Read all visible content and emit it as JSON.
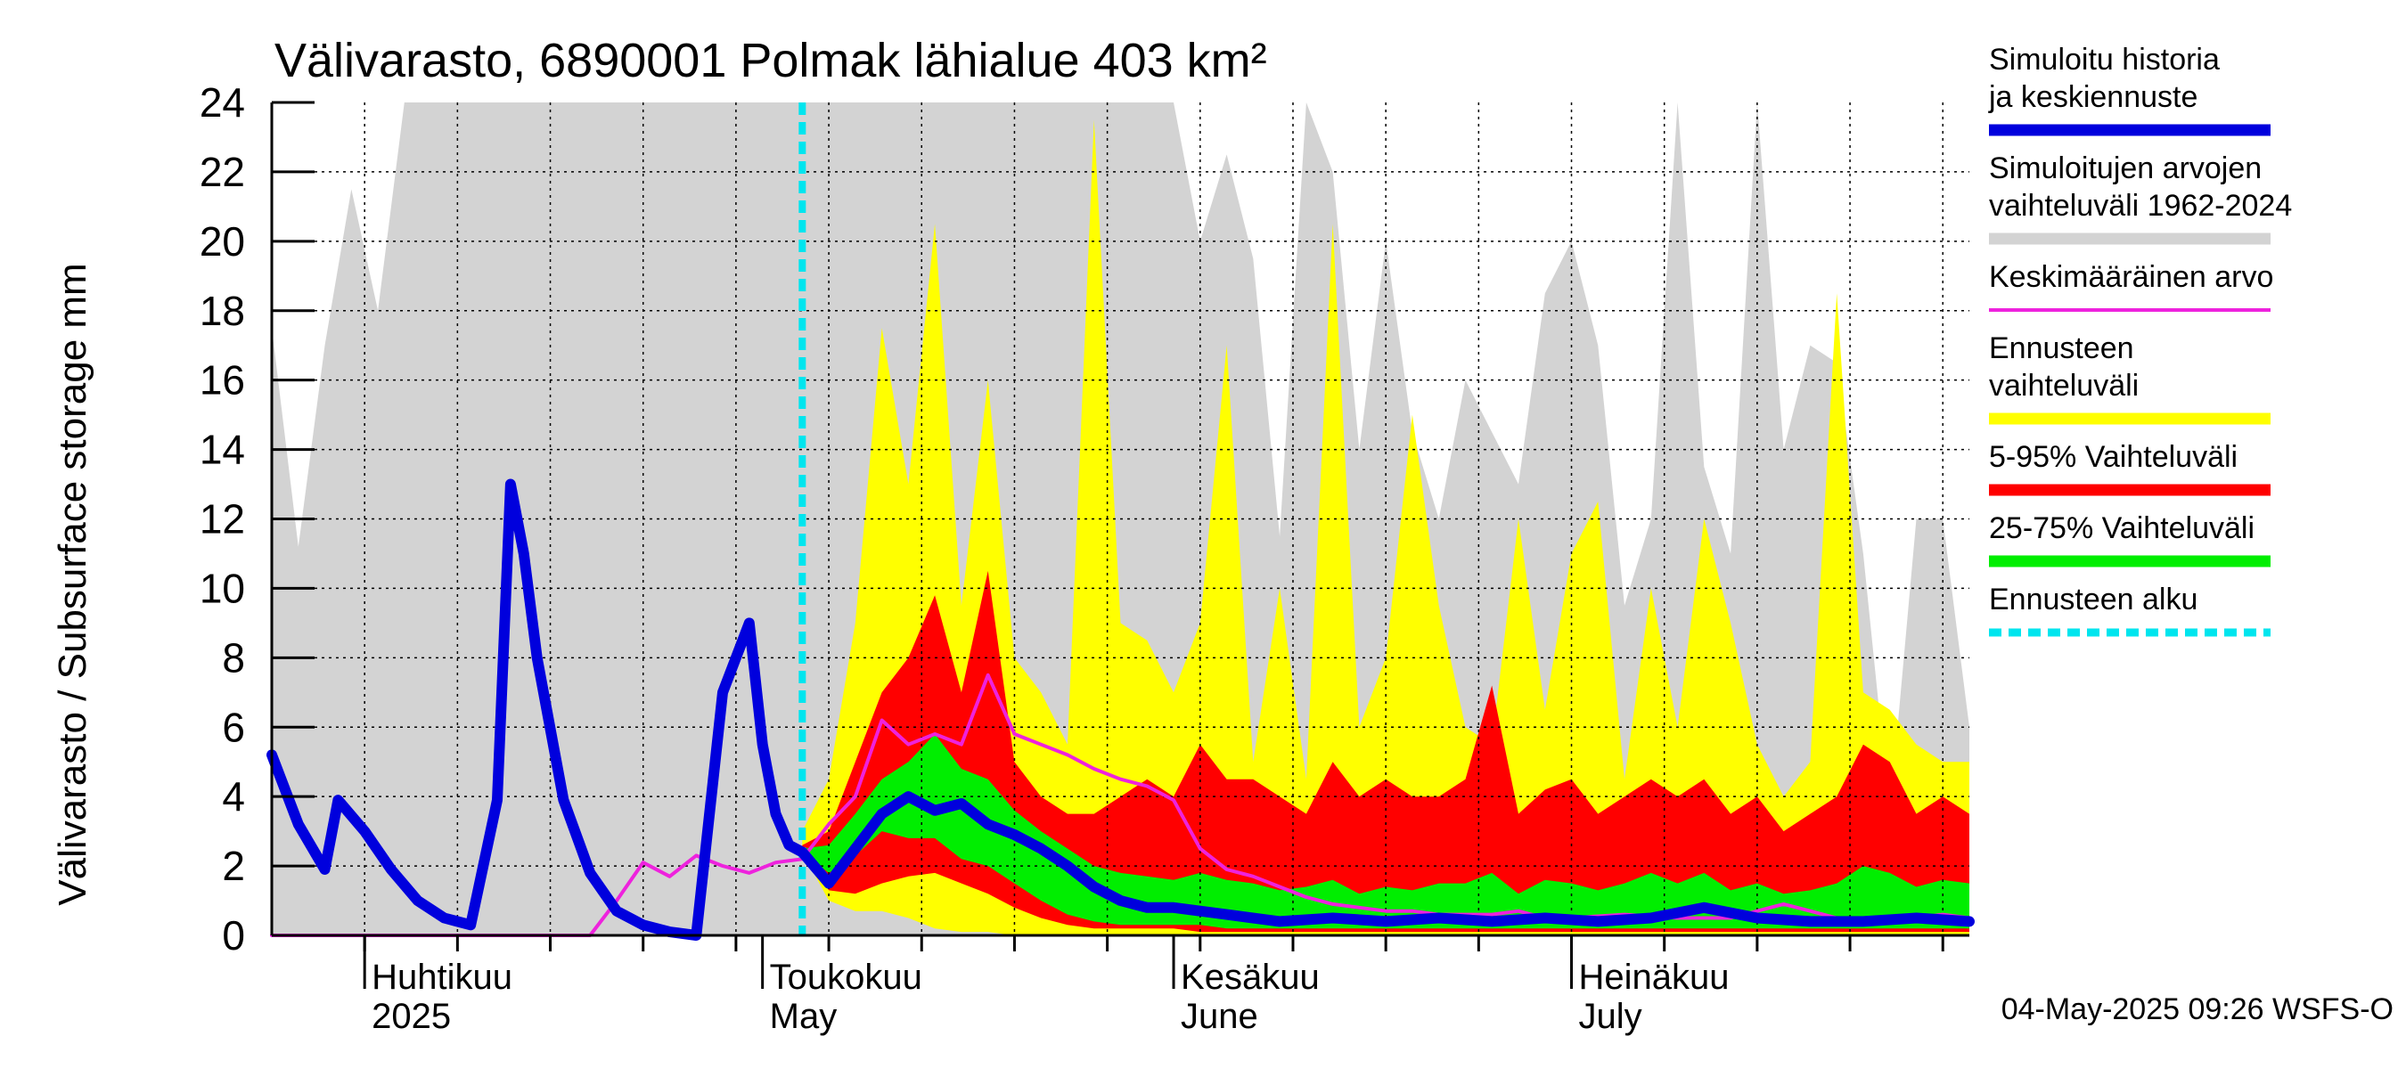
{
  "chart_data": {
    "type": "area",
    "title": "Välivarasto, 6890001 Polmak lähialue 403 km²",
    "ylabel": "Välivarasto / Subsurface storage  mm",
    "ylim": [
      0,
      24
    ],
    "yticks": [
      "0",
      "2",
      "4",
      "6",
      "8",
      "10",
      "12",
      "14",
      "16",
      "18",
      "20",
      "22",
      "24"
    ],
    "x_start": "2025-03-25",
    "x_end": "2025-07-31",
    "forecast_start": "2025-05-04",
    "grid": true,
    "month_labels": [
      {
        "fi": "Huhtikuu",
        "en": "2025",
        "date": "2025-04-01"
      },
      {
        "fi": "Toukokuu",
        "en": "May",
        "date": "2025-05-01"
      },
      {
        "fi": "Kesäkuu",
        "en": "June",
        "date": "2025-06-01"
      },
      {
        "fi": "Heinäkuu",
        "en": "July",
        "date": "2025-07-01"
      }
    ],
    "legend": [
      {
        "label": "Simuloitu historia ja keskiennuste",
        "color": "#0000dd",
        "style": "thick"
      },
      {
        "label": "Simuloitujen arvojen vaihteluväli 1962-2024",
        "color": "#d3d3d3",
        "style": "thick"
      },
      {
        "label": "Keskimääräinen arvo",
        "color": "#ee22dd",
        "style": "thin"
      },
      {
        "label": "Ennusteen vaihteluväli",
        "color": "#ffff00",
        "style": "thick"
      },
      {
        "label": "5-95% Vaihteluväli",
        "color": "#ff0000",
        "style": "thick"
      },
      {
        "label": "25-75% Vaihteluväli",
        "color": "#00ee00",
        "style": "thick"
      },
      {
        "label": "Ennusteen alku",
        "color": "#00e5ee",
        "style": "dashed"
      }
    ],
    "series": [
      {
        "name": "Simuloitujen arvojen vaihteluväli 1962-2024",
        "kind": "band",
        "color": "#d3d3d3",
        "x": [
          "2025-03-25",
          "2025-03-27",
          "2025-03-29",
          "2025-03-31",
          "2025-04-02",
          "2025-04-04",
          "2025-04-06",
          "2025-04-08",
          "2025-04-10",
          "2025-04-12",
          "2025-04-14",
          "2025-04-18",
          "2025-04-22",
          "2025-04-26",
          "2025-04-30",
          "2025-05-04",
          "2025-05-08",
          "2025-05-12",
          "2025-05-16",
          "2025-05-20",
          "2025-05-24",
          "2025-05-28",
          "2025-06-01",
          "2025-06-03",
          "2025-06-05",
          "2025-06-07",
          "2025-06-09",
          "2025-06-11",
          "2025-06-13",
          "2025-06-15",
          "2025-06-17",
          "2025-06-19",
          "2025-06-21",
          "2025-06-23",
          "2025-06-25",
          "2025-06-27",
          "2025-06-29",
          "2025-07-01",
          "2025-07-03",
          "2025-07-05",
          "2025-07-07",
          "2025-07-09",
          "2025-07-11",
          "2025-07-13",
          "2025-07-15",
          "2025-07-17",
          "2025-07-19",
          "2025-07-21",
          "2025-07-23",
          "2025-07-25",
          "2025-07-27",
          "2025-07-29",
          "2025-07-31"
        ],
        "lower": [
          0,
          0,
          0,
          0,
          0,
          0,
          0,
          0,
          0,
          0,
          0,
          0,
          0,
          0,
          0,
          0,
          0,
          0,
          0,
          0,
          0,
          0,
          0,
          0,
          0,
          0,
          0,
          0,
          0,
          0,
          0,
          0,
          0,
          0,
          0,
          0,
          0,
          0,
          0,
          0,
          0,
          0,
          0,
          0,
          0,
          0,
          0,
          0,
          0,
          0,
          0,
          0,
          0
        ],
        "upper": [
          17.5,
          11.2,
          17.0,
          21.5,
          18.0,
          24,
          24,
          24,
          24,
          24,
          24,
          24,
          24,
          24,
          24,
          24,
          24,
          24,
          24,
          24,
          24,
          24,
          24,
          20.0,
          22.5,
          19.5,
          11.5,
          24,
          22.0,
          14.0,
          20.0,
          14.5,
          12.0,
          16.0,
          14.5,
          13.0,
          18.5,
          20.0,
          17.0,
          9.5,
          12.0,
          24,
          13.5,
          11.0,
          24,
          14.0,
          17.0,
          16.5,
          11.0,
          3.5,
          12.0,
          12.0,
          6.0
        ]
      },
      {
        "name": "Ennusteen vaihteluväli",
        "kind": "band",
        "color": "#ffff00",
        "x": [
          "2025-05-04",
          "2025-05-06",
          "2025-05-08",
          "2025-05-10",
          "2025-05-12",
          "2025-05-14",
          "2025-05-16",
          "2025-05-18",
          "2025-05-20",
          "2025-05-22",
          "2025-05-24",
          "2025-05-26",
          "2025-05-28",
          "2025-05-30",
          "2025-06-01",
          "2025-06-03",
          "2025-06-05",
          "2025-06-07",
          "2025-06-09",
          "2025-06-11",
          "2025-06-13",
          "2025-06-15",
          "2025-06-17",
          "2025-06-19",
          "2025-06-21",
          "2025-06-23",
          "2025-06-25",
          "2025-06-27",
          "2025-06-29",
          "2025-07-01",
          "2025-07-03",
          "2025-07-05",
          "2025-07-07",
          "2025-07-09",
          "2025-07-11",
          "2025-07-13",
          "2025-07-15",
          "2025-07-17",
          "2025-07-19",
          "2025-07-21",
          "2025-07-23",
          "2025-07-25",
          "2025-07-27",
          "2025-07-29",
          "2025-07-31"
        ],
        "lower": [
          2.4,
          1.0,
          0.7,
          0.7,
          0.5,
          0.2,
          0.1,
          0.1,
          0.0,
          0.0,
          0.0,
          0.0,
          0.0,
          0.0,
          0.0,
          0.0,
          0.0,
          0.0,
          0.0,
          0.0,
          0.0,
          0.0,
          0.0,
          0.0,
          0.0,
          0.0,
          0.0,
          0.0,
          0.0,
          0.0,
          0.0,
          0.0,
          0.0,
          0.0,
          0.0,
          0.0,
          0.0,
          0.0,
          0.0,
          0.0,
          0.0,
          0.0,
          0.0,
          0.0,
          0.0
        ],
        "upper": [
          3.0,
          4.5,
          9.0,
          17.5,
          13.0,
          20.5,
          9.5,
          16.0,
          8.0,
          7.0,
          5.5,
          23.5,
          9.0,
          8.5,
          7.0,
          9.0,
          17.0,
          5.0,
          10.0,
          4.5,
          20.5,
          6.0,
          8.0,
          15.0,
          9.5,
          6.0,
          5.5,
          12.0,
          6.5,
          11.0,
          12.5,
          4.5,
          10.0,
          6.0,
          12.0,
          9.0,
          5.5,
          4.0,
          5.0,
          18.5,
          7.0,
          6.5,
          5.5,
          5.0,
          5.0
        ]
      },
      {
        "name": "5-95% Vaihteluväli",
        "kind": "band",
        "color": "#ff0000",
        "x": [
          "2025-05-04",
          "2025-05-06",
          "2025-05-08",
          "2025-05-10",
          "2025-05-12",
          "2025-05-14",
          "2025-05-16",
          "2025-05-18",
          "2025-05-20",
          "2025-05-22",
          "2025-05-24",
          "2025-05-26",
          "2025-05-28",
          "2025-05-30",
          "2025-06-01",
          "2025-06-03",
          "2025-06-05",
          "2025-06-07",
          "2025-06-09",
          "2025-06-11",
          "2025-06-13",
          "2025-06-15",
          "2025-06-17",
          "2025-06-19",
          "2025-06-21",
          "2025-06-23",
          "2025-06-25",
          "2025-06-27",
          "2025-06-29",
          "2025-07-01",
          "2025-07-03",
          "2025-07-05",
          "2025-07-07",
          "2025-07-09",
          "2025-07-11",
          "2025-07-13",
          "2025-07-15",
          "2025-07-17",
          "2025-07-19",
          "2025-07-21",
          "2025-07-23",
          "2025-07-25",
          "2025-07-27",
          "2025-07-29",
          "2025-07-31"
        ],
        "lower": [
          2.4,
          1.3,
          1.2,
          1.5,
          1.7,
          1.8,
          1.5,
          1.2,
          0.8,
          0.5,
          0.3,
          0.2,
          0.2,
          0.2,
          0.2,
          0.1,
          0.1,
          0.1,
          0.1,
          0.1,
          0.1,
          0.1,
          0.1,
          0.1,
          0.1,
          0.1,
          0.1,
          0.1,
          0.1,
          0.1,
          0.1,
          0.1,
          0.1,
          0.1,
          0.1,
          0.1,
          0.1,
          0.1,
          0.1,
          0.1,
          0.1,
          0.1,
          0.1,
          0.1,
          0.1
        ],
        "upper": [
          2.6,
          3.0,
          5.0,
          7.0,
          8.0,
          9.8,
          7.0,
          10.5,
          5.0,
          4.0,
          3.5,
          3.5,
          4.0,
          4.5,
          4.0,
          5.5,
          4.5,
          4.5,
          4.0,
          3.5,
          5.0,
          4.0,
          4.5,
          4.0,
          4.0,
          4.5,
          7.2,
          3.5,
          4.2,
          4.5,
          3.5,
          4.0,
          4.5,
          4.0,
          4.5,
          3.5,
          4.0,
          3.0,
          3.5,
          4.0,
          5.5,
          5.0,
          3.5,
          4.0,
          3.5
        ]
      },
      {
        "name": "25-75% Vaihteluväli",
        "kind": "band",
        "color": "#00ee00",
        "x": [
          "2025-05-04",
          "2025-05-06",
          "2025-05-08",
          "2025-05-10",
          "2025-05-12",
          "2025-05-14",
          "2025-05-16",
          "2025-05-18",
          "2025-05-20",
          "2025-05-22",
          "2025-05-24",
          "2025-05-26",
          "2025-05-28",
          "2025-05-30",
          "2025-06-01",
          "2025-06-03",
          "2025-06-05",
          "2025-06-07",
          "2025-06-09",
          "2025-06-11",
          "2025-06-13",
          "2025-06-15",
          "2025-06-17",
          "2025-06-19",
          "2025-06-21",
          "2025-06-23",
          "2025-06-25",
          "2025-06-27",
          "2025-06-29",
          "2025-07-01",
          "2025-07-03",
          "2025-07-05",
          "2025-07-07",
          "2025-07-09",
          "2025-07-11",
          "2025-07-13",
          "2025-07-15",
          "2025-07-17",
          "2025-07-19",
          "2025-07-21",
          "2025-07-23",
          "2025-07-25",
          "2025-07-27",
          "2025-07-29",
          "2025-07-31"
        ],
        "lower": [
          2.4,
          1.8,
          2.3,
          3.0,
          2.8,
          2.8,
          2.2,
          2.0,
          1.5,
          1.0,
          0.6,
          0.4,
          0.3,
          0.3,
          0.3,
          0.3,
          0.2,
          0.2,
          0.2,
          0.2,
          0.2,
          0.2,
          0.2,
          0.2,
          0.2,
          0.2,
          0.2,
          0.2,
          0.2,
          0.2,
          0.2,
          0.2,
          0.2,
          0.2,
          0.2,
          0.2,
          0.2,
          0.2,
          0.2,
          0.2,
          0.2,
          0.2,
          0.2,
          0.2,
          0.2
        ],
        "upper": [
          2.5,
          2.6,
          3.5,
          4.5,
          5.0,
          5.8,
          4.8,
          4.5,
          3.6,
          3.0,
          2.5,
          2.0,
          1.8,
          1.7,
          1.6,
          1.8,
          1.6,
          1.5,
          1.3,
          1.4,
          1.6,
          1.2,
          1.4,
          1.3,
          1.5,
          1.5,
          1.8,
          1.2,
          1.6,
          1.5,
          1.3,
          1.5,
          1.8,
          1.5,
          1.8,
          1.3,
          1.5,
          1.2,
          1.3,
          1.5,
          2.0,
          1.8,
          1.4,
          1.6,
          1.5
        ]
      },
      {
        "name": "Keskimääräinen arvo",
        "kind": "line",
        "color": "#ee22dd",
        "x": [
          "2025-03-25",
          "2025-04-02",
          "2025-04-10",
          "2025-04-18",
          "2025-04-20",
          "2025-04-22",
          "2025-04-24",
          "2025-04-26",
          "2025-04-28",
          "2025-04-30",
          "2025-05-02",
          "2025-05-04",
          "2025-05-06",
          "2025-05-08",
          "2025-05-10",
          "2025-05-12",
          "2025-05-14",
          "2025-05-16",
          "2025-05-18",
          "2025-05-20",
          "2025-05-22",
          "2025-05-24",
          "2025-05-26",
          "2025-05-28",
          "2025-05-30",
          "2025-06-01",
          "2025-06-03",
          "2025-06-05",
          "2025-06-07",
          "2025-06-09",
          "2025-06-11",
          "2025-06-13",
          "2025-06-15",
          "2025-06-17",
          "2025-06-19",
          "2025-06-21",
          "2025-06-23",
          "2025-06-25",
          "2025-06-27",
          "2025-06-29",
          "2025-07-01",
          "2025-07-05",
          "2025-07-09",
          "2025-07-13",
          "2025-07-17",
          "2025-07-21",
          "2025-07-25",
          "2025-07-29",
          "2025-07-31"
        ],
        "y": [
          0,
          0,
          0,
          0,
          1.0,
          2.1,
          1.7,
          2.3,
          2.0,
          1.8,
          2.1,
          2.2,
          3.2,
          4.0,
          6.2,
          5.5,
          5.8,
          5.5,
          7.5,
          5.8,
          5.5,
          5.2,
          4.8,
          4.5,
          4.3,
          3.9,
          2.5,
          1.9,
          1.7,
          1.4,
          1.1,
          0.9,
          0.8,
          0.7,
          0.7,
          0.6,
          0.6,
          0.6,
          0.7,
          0.5,
          0.5,
          0.6,
          0.5,
          0.5,
          0.9,
          0.5,
          0.4,
          0.6,
          0.5
        ]
      },
      {
        "name": "Simuloitu historia ja keskiennuste",
        "kind": "line",
        "color": "#0000dd",
        "x": [
          "2025-03-25",
          "2025-03-27",
          "2025-03-29",
          "2025-03-30",
          "2025-04-01",
          "2025-04-03",
          "2025-04-05",
          "2025-04-07",
          "2025-04-09",
          "2025-04-11",
          "2025-04-12",
          "2025-04-13",
          "2025-04-14",
          "2025-04-16",
          "2025-04-18",
          "2025-04-20",
          "2025-04-22",
          "2025-04-24",
          "2025-04-26",
          "2025-04-28",
          "2025-04-30",
          "2025-05-01",
          "2025-05-02",
          "2025-05-03",
          "2025-05-04",
          "2025-05-06",
          "2025-05-08",
          "2025-05-10",
          "2025-05-12",
          "2025-05-14",
          "2025-05-16",
          "2025-05-18",
          "2025-05-20",
          "2025-05-22",
          "2025-05-24",
          "2025-05-26",
          "2025-05-28",
          "2025-05-30",
          "2025-06-01",
          "2025-06-05",
          "2025-06-09",
          "2025-06-13",
          "2025-06-17",
          "2025-06-21",
          "2025-06-25",
          "2025-06-29",
          "2025-07-03",
          "2025-07-07",
          "2025-07-11",
          "2025-07-15",
          "2025-07-19",
          "2025-07-23",
          "2025-07-27",
          "2025-07-31"
        ],
        "y": [
          5.2,
          3.2,
          1.9,
          3.9,
          3.0,
          1.9,
          1.0,
          0.5,
          0.3,
          3.9,
          13.0,
          11.0,
          8.0,
          3.9,
          1.8,
          0.7,
          0.3,
          0.1,
          0.0,
          7.0,
          9.0,
          5.5,
          3.5,
          2.6,
          2.4,
          1.5,
          2.5,
          3.5,
          4.0,
          3.6,
          3.8,
          3.2,
          2.9,
          2.5,
          2.0,
          1.4,
          1.0,
          0.8,
          0.8,
          0.6,
          0.4,
          0.5,
          0.4,
          0.5,
          0.4,
          0.5,
          0.4,
          0.5,
          0.8,
          0.5,
          0.4,
          0.4,
          0.5,
          0.4
        ]
      }
    ]
  },
  "footer": {
    "timestamp": "04-May-2025 09:26 WSFS-O"
  }
}
